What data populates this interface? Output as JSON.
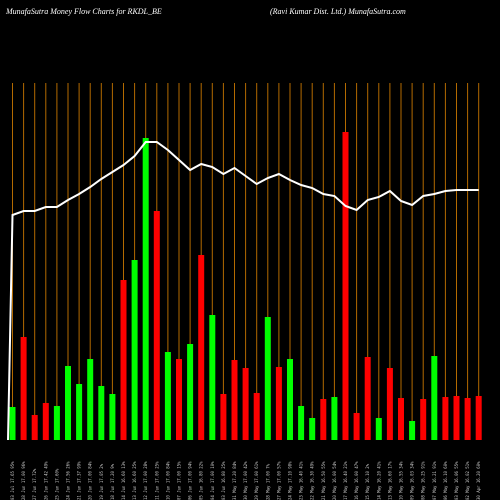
{
  "header": {
    "left": "MunafaSutra  Money Flow  Charts for RKDL_BE",
    "right": "(Ravi   Kumar Dist. Ltd.) MunafaSutra.com"
  },
  "colors": {
    "up": "#00ff00",
    "down": "#ff0000",
    "grid": "#b36a00",
    "line": "#ffffff",
    "background": "#000000"
  },
  "chart_data": {
    "type": "bar",
    "title": "MunafaSutra  Money Flow  Charts for RKDL_BE",
    "subtitle": "(Ravi   Kumar Dist. Ltd.) MunafaSutra.com",
    "categories": [
      "03 Jul 17.65 95%",
      "28 Jun 17.00 96%",
      "27 Jun 17.72%",
      "26 Jun 17.42 49%",
      "25 Jun 17.60%",
      "24 Jun 17.56 26%",
      "21 Jun 17.37 99%",
      "20 Jun 17.00 84%",
      "19 Jun 17.05 2%",
      "18 Jun 17.20 9%",
      "14 Jun 16.60 13%",
      "13 Jun 16.60 25%",
      "12 Jun 17.00 28%",
      "11 Jun 17.00 25%",
      "10 Jun 17.00 84%",
      "07 Jun 17.00 15%",
      "06 Jun 17.00 94%",
      "05 Jun 16.80 22%",
      "04 Jun 17.00 10%",
      "03 Jun 16.80 25%",
      "31 May 17.20 84%",
      "30 May 17.00 42%",
      "29 May 17.00 61%",
      "28 May 17.00 7%",
      "27 May 17.00 57%",
      "24 May 17.10 98%",
      "23 May 16.40 41%",
      "22 May 16.30 49%",
      "21 May 16.50 55%",
      "20 May 16.00 54%",
      "17 May 16.40 21%",
      "16 May 16.00 47%",
      "15 May 16.10 2%",
      "14 May 16.20 41%",
      "13 May 16.60 17%",
      "10 May 16.55 34%",
      "09 May 16.03 34%",
      "08 May 16.25 91%",
      "07 May 16.21 91%",
      "06 May 16.10 60%",
      "03 May 16.06 55%",
      "02 May 16.02 51%",
      "30 Apr 16.20 60%"
    ],
    "bar_colors": [
      "green",
      "red",
      "red",
      "red",
      "green",
      "green",
      "green",
      "green",
      "green",
      "green",
      "red",
      "green",
      "green",
      "red",
      "green",
      "red",
      "green",
      "red",
      "green",
      "red",
      "red",
      "red",
      "red",
      "green",
      "red",
      "green",
      "green",
      "green",
      "red",
      "green",
      "red",
      "red",
      "red",
      "green",
      "red",
      "red",
      "green",
      "red",
      "green",
      "red",
      "red",
      "red",
      "red"
    ],
    "series": [
      {
        "type": "bar",
        "values": [
          33,
          103,
          25,
          37,
          34,
          74,
          56,
          81,
          54,
          46,
          160,
          180,
          302,
          229,
          88,
          81,
          96,
          185,
          125,
          46,
          80,
          72,
          47,
          123,
          73,
          81,
          34,
          22,
          41,
          43,
          308,
          27,
          83,
          22,
          72,
          42,
          19,
          41,
          84,
          43,
          44,
          42,
          44
        ]
      },
      {
        "type": "line",
        "values": [
          225,
          229,
          229,
          233,
          233,
          240,
          246,
          253,
          261,
          268,
          275,
          284,
          298,
          298,
          290,
          280,
          270,
          276,
          273,
          266,
          272,
          264,
          256,
          262,
          266,
          260,
          255,
          252,
          246,
          244,
          234,
          230,
          240,
          243,
          249,
          239,
          235,
          244,
          246,
          249,
          250,
          250,
          250
        ]
      }
    ],
    "ylim": [
      0,
      310
    ],
    "grid": true,
    "legend": "none"
  }
}
